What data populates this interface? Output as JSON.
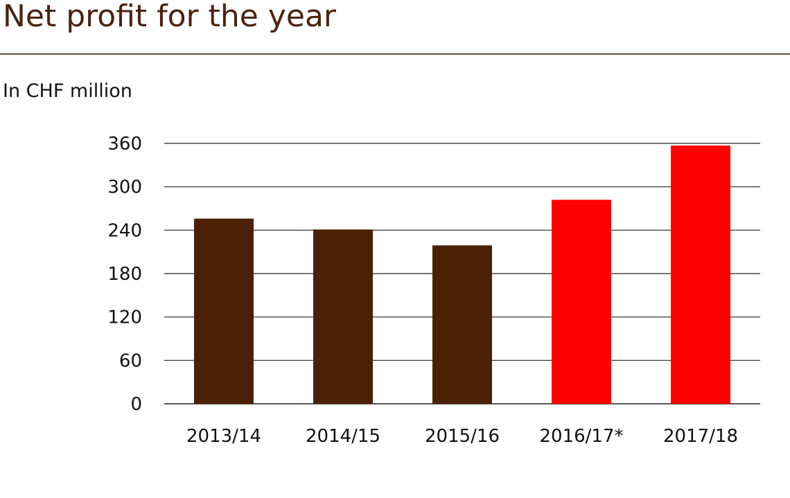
{
  "header": {
    "title": "Net profit for the year",
    "unit": "In CHF million"
  },
  "colors": {
    "title": "#4a2311",
    "brown": "#4a2105",
    "red": "#ff0000",
    "grid": "#222222",
    "rule": "#6b4a3a"
  },
  "chart_data": {
    "type": "bar",
    "title": "Net profit for the year",
    "ylabel": "In CHF million",
    "xlabel": "",
    "categories": [
      "2013/14",
      "2014/15",
      "2015/16",
      "2016/17*",
      "2017/18"
    ],
    "values": [
      256,
      241,
      219,
      282,
      357
    ],
    "bar_colors": [
      "#4a2105",
      "#4a2105",
      "#4a2105",
      "#ff0000",
      "#ff0000"
    ],
    "ylim": [
      0,
      360
    ],
    "yticks": [
      0,
      60,
      120,
      180,
      240,
      300,
      360
    ],
    "grid": true,
    "legend": "none"
  }
}
